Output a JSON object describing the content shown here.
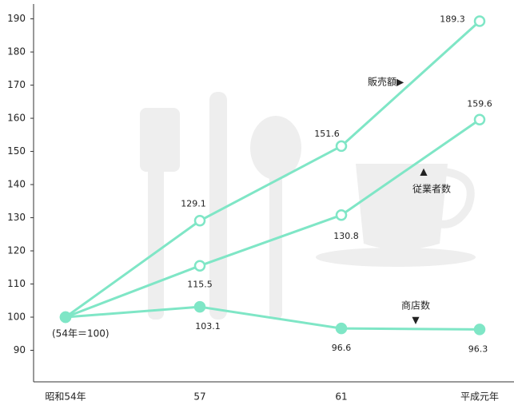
{
  "chart_data": {
    "type": "line",
    "categories": [
      "昭和54年",
      "57",
      "61",
      "平成元年"
    ],
    "series": [
      {
        "name": "販売額",
        "color": "#7fe6c6",
        "values": [
          100,
          129.1,
          151.6,
          189.3
        ]
      },
      {
        "name": "従業者数",
        "color": "#7fe6c6",
        "values": [
          100,
          115.5,
          130.8,
          159.6
        ]
      },
      {
        "name": "商店数",
        "color": "#7fe6c6",
        "values": [
          100,
          103.1,
          96.6,
          96.3
        ]
      }
    ],
    "ylim": [
      80,
      194
    ],
    "yticks": [
      90,
      100,
      110,
      120,
      130,
      140,
      150,
      160,
      170,
      180,
      190
    ],
    "annotations": [
      "(54年＝100)",
      "販売額▶",
      "▲",
      "従業者数",
      "商店数",
      "▼"
    ]
  }
}
